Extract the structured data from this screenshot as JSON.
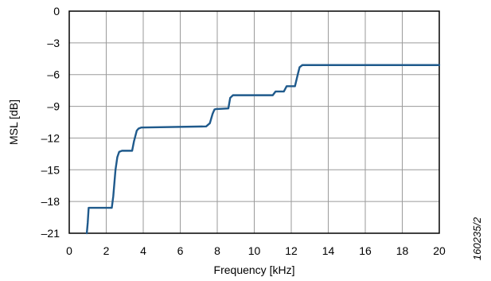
{
  "chart_data": {
    "type": "line",
    "xlabel": "Frequency [kHz]",
    "ylabel": "MSL [dB]",
    "xlim": [
      0,
      20
    ],
    "ylim": [
      -21,
      0
    ],
    "x_ticks": [
      "0",
      "2",
      "4",
      "6",
      "8",
      "10",
      "12",
      "14",
      "16",
      "18",
      "20"
    ],
    "y_ticks": [
      "0",
      "–3",
      "–6",
      "–9",
      "–12",
      "–15",
      "–18",
      "–21"
    ],
    "grid": true,
    "series": [
      {
        "color": "#1f5a8c",
        "x": [
          0.95,
          1.0,
          1.05,
          1.1,
          2.3,
          2.38,
          2.5,
          2.6,
          2.7,
          2.85,
          3.4,
          3.5,
          3.65,
          3.75,
          3.9,
          7.4,
          7.6,
          7.75,
          7.85,
          7.95,
          8.0,
          8.6,
          8.7,
          8.85,
          11.0,
          11.15,
          11.6,
          11.75,
          12.2,
          12.35,
          12.45,
          12.6,
          20.0
        ],
        "y": [
          -21.0,
          -20.0,
          -18.6,
          -18.6,
          -18.6,
          -17.5,
          -15.0,
          -13.8,
          -13.3,
          -13.2,
          -13.2,
          -12.3,
          -11.3,
          -11.1,
          -11.0,
          -10.9,
          -10.6,
          -9.7,
          -9.3,
          -9.25,
          -9.25,
          -9.2,
          -8.2,
          -7.95,
          -7.95,
          -7.6,
          -7.6,
          -7.1,
          -7.1,
          -6.0,
          -5.3,
          -5.1,
          -5.1
        ]
      }
    ]
  },
  "figure_id": "160235/2"
}
